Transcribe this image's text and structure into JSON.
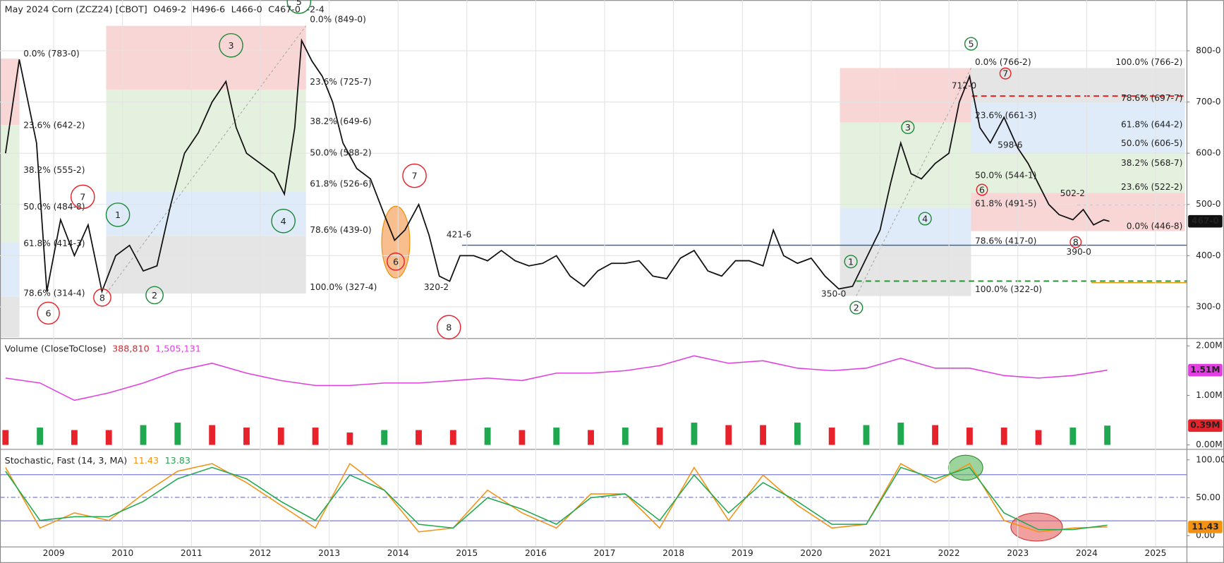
{
  "chart_data": [
    {
      "type": "line",
      "title": "May 2024 Corn (ZCZ24) [CBOT]",
      "ohlc": [
        "O469-2",
        "H496-6",
        "L466-0",
        "C467-0"
      ],
      "change": "-2-4",
      "x": [
        2008.3,
        2008.5,
        2008.75,
        2008.9,
        2009.1,
        2009.3,
        2009.5,
        2009.7,
        2009.9,
        2010.1,
        2010.3,
        2010.5,
        2010.7,
        2010.9,
        2011.1,
        2011.3,
        2011.5,
        2011.65,
        2011.8,
        2012.0,
        2012.2,
        2012.35,
        2012.5,
        2012.6,
        2012.75,
        2012.9,
        2013.05,
        2013.2,
        2013.4,
        2013.6,
        2013.8,
        2013.95,
        2014.1,
        2014.3,
        2014.45,
        2014.6,
        2014.75,
        2014.9,
        2015.1,
        2015.3,
        2015.5,
        2015.7,
        2015.9,
        2016.1,
        2016.3,
        2016.5,
        2016.7,
        2016.9,
        2017.1,
        2017.3,
        2017.5,
        2017.7,
        2017.9,
        2018.1,
        2018.3,
        2018.5,
        2018.7,
        2018.9,
        2019.1,
        2019.3,
        2019.45,
        2019.6,
        2019.8,
        2020.0,
        2020.2,
        2020.4,
        2020.6,
        2020.8,
        2021.0,
        2021.15,
        2021.3,
        2021.45,
        2021.6,
        2021.8,
        2022.0,
        2022.15,
        2022.3,
        2022.45,
        2022.6,
        2022.8,
        2023.0,
        2023.15,
        2023.3,
        2023.45,
        2023.6,
        2023.8,
        2023.95,
        2024.1,
        2024.25,
        2024.33
      ],
      "series": [
        {
          "color": "#111111",
          "last_label": "467-0",
          "values": [
            600,
            783,
            620,
            330,
            470,
            400,
            460,
            330,
            400,
            420,
            370,
            380,
            500,
            600,
            640,
            700,
            740,
            650,
            600,
            580,
            560,
            520,
            650,
            820,
            780,
            750,
            700,
            620,
            570,
            550,
            480,
            430,
            450,
            500,
            440,
            360,
            350,
            400,
            400,
            390,
            410,
            390,
            380,
            385,
            400,
            360,
            340,
            370,
            385,
            385,
            390,
            360,
            355,
            395,
            410,
            370,
            360,
            390,
            390,
            380,
            450,
            400,
            385,
            395,
            360,
            335,
            340,
            395,
            450,
            540,
            620,
            560,
            550,
            580,
            600,
            700,
            750,
            650,
            620,
            670,
            610,
            580,
            540,
            500,
            480,
            470,
            490,
            460,
            470,
            467
          ]
        }
      ],
      "xlim": [
        2008.22,
        2025.45
      ],
      "ylim": [
        240.5,
        899
      ],
      "yticks": [
        {
          "value": 300,
          "label": "300-0"
        },
        {
          "value": 400,
          "label": "400-0"
        },
        {
          "value": 500,
          "label": "500-0"
        },
        {
          "value": 600,
          "label": "600-0"
        },
        {
          "value": 700,
          "label": "700-0"
        },
        {
          "value": 800,
          "label": "800-0"
        }
      ],
      "grid": true,
      "annotations": [
        "0.0% (783-0)",
        "23.6% (642-2)",
        "38.2% (555-2)",
        "50.0% (484-8)",
        "61.8% (414-3)",
        "78.6% (314-4)",
        "0.0% (849-0)",
        "23.6% (725-7)",
        "38.2% (649-6)",
        "50.0% (588-2)",
        "61.8% (526-6)",
        "78.6% (439-0)",
        "100.0% (327-4)",
        "0.0% (766-2)",
        "23.6% (661-3)",
        "50.0% (544-1)",
        "61.8% (491-5)",
        "78.6% (417-0)",
        "100.0% (322-0)",
        "100.0% (766-2)",
        "78.6% (697-7)",
        "61.8% (644-2)",
        "50.0% (606-5)",
        "38.2% (568-7)",
        "23.6% (522-2)",
        "0.0% (446-8)",
        "421-6",
        "320-2",
        "350-0",
        "712-0",
        "598-6",
        "502-2",
        "390-0"
      ],
      "waves": [
        "7",
        "1",
        "3",
        "4",
        "5",
        "2",
        "8",
        "6",
        "7",
        "6",
        "8",
        "1",
        "2",
        "3",
        "4",
        "5",
        "7",
        "6",
        "8"
      ]
    },
    {
      "type": "combo",
      "title": "Volume  (CloseToClose)",
      "x": [
        2008.3,
        2008.8,
        2009.3,
        2009.8,
        2010.3,
        2010.8,
        2011.3,
        2011.8,
        2012.3,
        2012.8,
        2013.3,
        2013.8,
        2014.3,
        2014.8,
        2015.3,
        2015.8,
        2016.3,
        2016.8,
        2017.3,
        2017.8,
        2018.3,
        2018.8,
        2019.3,
        2019.8,
        2020.3,
        2020.8,
        2021.3,
        2021.8,
        2022.3,
        2022.8,
        2023.3,
        2023.8,
        2024.3
      ],
      "series": [
        {
          "kind": "bar",
          "label": "388,810",
          "color": "#e8222a",
          "up_color": "#1fa84f",
          "last_label": "0.39M",
          "values": [
            0.3,
            0.35,
            0.3,
            0.3,
            0.4,
            0.45,
            0.4,
            0.35,
            0.35,
            0.35,
            0.25,
            0.3,
            0.3,
            0.3,
            0.35,
            0.3,
            0.35,
            0.3,
            0.35,
            0.35,
            0.45,
            0.4,
            0.4,
            0.45,
            0.35,
            0.4,
            0.45,
            0.4,
            0.35,
            0.35,
            0.3,
            0.35,
            0.39
          ]
        },
        {
          "kind": "line",
          "label": "1,505,131",
          "color": "#e040e0",
          "last_label": "1.51M",
          "values": [
            1.35,
            1.25,
            0.9,
            1.05,
            1.25,
            1.5,
            1.65,
            1.45,
            1.3,
            1.2,
            1.2,
            1.25,
            1.25,
            1.3,
            1.35,
            1.3,
            1.45,
            1.45,
            1.5,
            1.6,
            1.8,
            1.65,
            1.7,
            1.55,
            1.5,
            1.55,
            1.75,
            1.55,
            1.55,
            1.4,
            1.35,
            1.4,
            1.51
          ]
        }
      ],
      "xlim": [
        2008.22,
        2025.45
      ],
      "ylim": [
        -0.05,
        2.11
      ],
      "yticks": [
        {
          "value": 0,
          "label": "0.00M"
        },
        {
          "value": 1,
          "label": "1.00M"
        },
        {
          "value": 2,
          "label": "2.00M"
        }
      ],
      "grid": false
    },
    {
      "type": "line",
      "title": "Stochastic, Fast  (14, 3, MA)",
      "x": [
        2008.3,
        2008.8,
        2009.3,
        2009.8,
        2010.3,
        2010.8,
        2011.3,
        2011.8,
        2012.3,
        2012.8,
        2013.3,
        2013.8,
        2014.3,
        2014.8,
        2015.3,
        2015.8,
        2016.3,
        2016.8,
        2017.3,
        2017.8,
        2018.3,
        2018.8,
        2019.3,
        2019.8,
        2020.3,
        2020.8,
        2021.3,
        2021.8,
        2022.3,
        2022.8,
        2023.3,
        2023.8,
        2024.3
      ],
      "series": [
        {
          "label": "11.43",
          "color": "#f39212",
          "last_label": "11.43",
          "values": [
            90,
            10,
            30,
            20,
            55,
            85,
            95,
            70,
            40,
            10,
            95,
            60,
            5,
            10,
            60,
            30,
            10,
            55,
            55,
            10,
            90,
            20,
            80,
            40,
            10,
            15,
            95,
            70,
            95,
            20,
            5,
            10,
            11.43
          ]
        },
        {
          "label": "13.83",
          "color": "#1fa84f",
          "values": [
            85,
            20,
            25,
            25,
            45,
            75,
            90,
            75,
            45,
            20,
            80,
            60,
            15,
            10,
            50,
            35,
            15,
            50,
            55,
            20,
            80,
            30,
            70,
            45,
            15,
            15,
            90,
            75,
            90,
            30,
            8,
            8,
            13.83
          ]
        }
      ],
      "xlim": [
        2008.22,
        2025.45
      ],
      "ylim": [
        -14.4,
        111.3
      ],
      "yticks": [
        {
          "value": 0,
          "label": "0.00"
        },
        {
          "value": 50,
          "label": "50.00"
        },
        {
          "value": 100,
          "label": "100.00"
        }
      ],
      "xticks": [
        2009,
        2010,
        2011,
        2012,
        2013,
        2014,
        2015,
        2016,
        2017,
        2018,
        2019,
        2020,
        2021,
        2022,
        2023,
        2024,
        2025
      ],
      "grid": false
    }
  ]
}
